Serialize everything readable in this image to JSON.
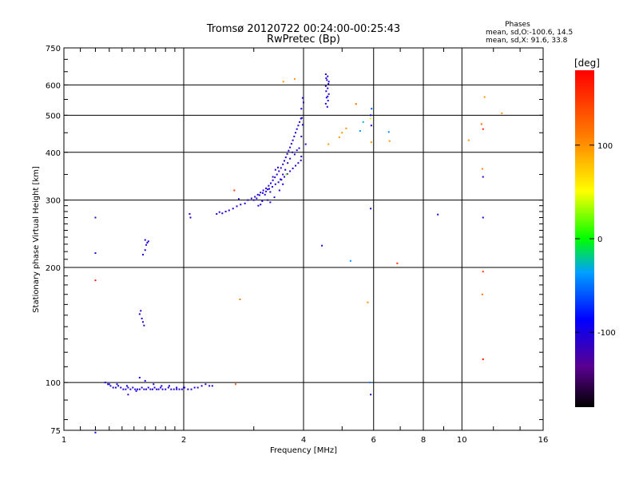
{
  "chart_data": {
    "type": "scatter",
    "title": "Tromsø 20120722 00:24:00-00:25:43",
    "subtitle": "RwPretec (Bp)",
    "stats": {
      "heading": "Phases",
      "line1": "mean, sd,O:-100.6, 14.5",
      "line2": "mean, sd,X:  91.6, 33.8"
    },
    "xlabel": "Frequency [MHz]",
    "ylabel": "Stationary phase Virtual Height [km]",
    "xscale": "log",
    "yscale": "log",
    "xlim": [
      1,
      16
    ],
    "ylim": [
      75,
      750
    ],
    "xticks": [
      1,
      2,
      4,
      6,
      8,
      10,
      16
    ],
    "yticks": [
      75,
      100,
      200,
      300,
      400,
      500,
      600,
      750
    ],
    "colorbar": {
      "label": "[deg]",
      "range": [
        -180,
        180
      ],
      "ticks": [
        -100,
        0,
        100
      ]
    },
    "grid": true,
    "points": [
      [
        1.27,
        100,
        -100
      ],
      [
        1.29,
        99,
        -105
      ],
      [
        1.31,
        98,
        -100
      ],
      [
        1.33,
        97,
        -110
      ],
      [
        1.35,
        97,
        -100
      ],
      [
        1.37,
        98,
        -105
      ],
      [
        1.39,
        97,
        -100
      ],
      [
        1.41,
        96,
        -110
      ],
      [
        1.43,
        96,
        -100
      ],
      [
        1.45,
        97,
        -105
      ],
      [
        1.47,
        96,
        -100
      ],
      [
        1.49,
        97,
        -110
      ],
      [
        1.51,
        96,
        -100
      ],
      [
        1.53,
        96,
        -105
      ],
      [
        1.55,
        96,
        -100
      ],
      [
        1.57,
        97,
        -110
      ],
      [
        1.59,
        96,
        -100
      ],
      [
        1.61,
        96,
        -105
      ],
      [
        1.63,
        97,
        -100
      ],
      [
        1.65,
        96,
        -110
      ],
      [
        1.67,
        96,
        -100
      ],
      [
        1.69,
        97,
        -105
      ],
      [
        1.71,
        96,
        -100
      ],
      [
        1.73,
        96,
        -110
      ],
      [
        1.75,
        97,
        -100
      ],
      [
        1.77,
        96,
        -105
      ],
      [
        1.8,
        96,
        -100
      ],
      [
        1.83,
        97,
        -110
      ],
      [
        1.86,
        96,
        -100
      ],
      [
        1.89,
        96,
        -105
      ],
      [
        1.92,
        97,
        -100
      ],
      [
        1.95,
        96,
        -110
      ],
      [
        1.98,
        96,
        -100
      ],
      [
        2.01,
        97,
        -105
      ],
      [
        2.05,
        96,
        -100
      ],
      [
        2.09,
        96,
        -110
      ],
      [
        2.13,
        97,
        -100
      ],
      [
        2.17,
        97,
        -105
      ],
      [
        2.22,
        98,
        -100
      ],
      [
        2.27,
        99,
        -110
      ],
      [
        2.32,
        98,
        -100
      ],
      [
        2.36,
        98,
        -105
      ],
      [
        1.3,
        99,
        -80
      ],
      [
        1.36,
        99,
        -95
      ],
      [
        1.44,
        98,
        -90
      ],
      [
        1.52,
        95,
        -100
      ],
      [
        1.6,
        101,
        -100
      ],
      [
        1.68,
        99,
        -95
      ],
      [
        1.76,
        98,
        -100
      ],
      [
        1.84,
        98,
        -95
      ],
      [
        1.92,
        96,
        -100
      ],
      [
        2.0,
        97,
        -95
      ],
      [
        1.45,
        93,
        -115
      ],
      [
        1.55,
        103,
        -100
      ],
      [
        1.55,
        151,
        -110
      ],
      [
        1.57,
        147,
        -100
      ],
      [
        1.58,
        144,
        -105
      ],
      [
        1.59,
        141,
        -110
      ],
      [
        1.56,
        154,
        -100
      ],
      [
        1.58,
        216,
        -105
      ],
      [
        1.6,
        222,
        -100
      ],
      [
        1.61,
        229,
        -110
      ],
      [
        1.62,
        232,
        -100
      ],
      [
        1.6,
        236,
        -105
      ],
      [
        1.63,
        234,
        -100
      ],
      [
        1.2,
        270,
        -110
      ],
      [
        1.2,
        218,
        -100
      ],
      [
        2.42,
        276,
        -100
      ],
      [
        2.46,
        279,
        -105
      ],
      [
        2.5,
        277,
        -100
      ],
      [
        2.55,
        280,
        -110
      ],
      [
        2.6,
        282,
        -100
      ],
      [
        2.66,
        285,
        -105
      ],
      [
        2.72,
        289,
        -100
      ],
      [
        2.78,
        292,
        -110
      ],
      [
        2.85,
        294,
        -100
      ],
      [
        2.9,
        300,
        -105
      ],
      [
        2.96,
        303,
        -100
      ],
      [
        3.02,
        306,
        -110
      ],
      [
        3.07,
        310,
        -100
      ],
      [
        3.12,
        314,
        -105
      ],
      [
        3.17,
        318,
        -100
      ],
      [
        3.22,
        322,
        -110
      ],
      [
        3.27,
        327,
        -100
      ],
      [
        3.31,
        332,
        -105
      ],
      [
        3.35,
        338,
        -100
      ],
      [
        3.39,
        344,
        -110
      ],
      [
        3.43,
        350,
        -100
      ],
      [
        3.47,
        357,
        -105
      ],
      [
        3.51,
        364,
        -100
      ],
      [
        3.55,
        372,
        -110
      ],
      [
        3.58,
        380,
        -100
      ],
      [
        3.61,
        388,
        -105
      ],
      [
        3.64,
        396,
        -100
      ],
      [
        3.67,
        404,
        -110
      ],
      [
        3.7,
        412,
        -100
      ],
      [
        3.73,
        421,
        -105
      ],
      [
        3.76,
        430,
        -100
      ],
      [
        3.79,
        440,
        -110
      ],
      [
        3.82,
        450,
        -100
      ],
      [
        3.85,
        460,
        -105
      ],
      [
        3.88,
        470,
        -100
      ],
      [
        3.91,
        480,
        -110
      ],
      [
        3.94,
        490,
        -100
      ],
      [
        3.0,
        300,
        -110
      ],
      [
        3.05,
        303,
        -100
      ],
      [
        3.1,
        309,
        -105
      ],
      [
        3.16,
        313,
        -100
      ],
      [
        3.22,
        316,
        -110
      ],
      [
        3.28,
        321,
        -100
      ],
      [
        3.34,
        325,
        -105
      ],
      [
        3.4,
        330,
        -100
      ],
      [
        3.46,
        334,
        -110
      ],
      [
        3.52,
        339,
        -100
      ],
      [
        3.58,
        345,
        -105
      ],
      [
        3.64,
        351,
        -100
      ],
      [
        3.7,
        357,
        -110
      ],
      [
        3.76,
        363,
        -100
      ],
      [
        3.82,
        369,
        -105
      ],
      [
        3.88,
        375,
        -100
      ],
      [
        3.94,
        381,
        -110
      ],
      [
        3.2,
        310,
        -100
      ],
      [
        3.25,
        320,
        -105
      ],
      [
        3.3,
        315,
        -100
      ],
      [
        3.35,
        345,
        -110
      ],
      [
        3.4,
        360,
        -100
      ],
      [
        3.45,
        365,
        -105
      ],
      [
        3.5,
        340,
        -100
      ],
      [
        3.55,
        350,
        -110
      ],
      [
        3.6,
        360,
        -100
      ],
      [
        3.65,
        375,
        -105
      ],
      [
        3.7,
        385,
        -100
      ],
      [
        3.75,
        400,
        -110
      ],
      [
        3.8,
        395,
        -100
      ],
      [
        3.85,
        405,
        -105
      ],
      [
        3.9,
        410,
        -100
      ],
      [
        3.95,
        390,
        -110
      ],
      [
        3.62,
        350,
        30
      ],
      [
        3.55,
        330,
        -95
      ],
      [
        3.48,
        318,
        -100
      ],
      [
        3.38,
        305,
        -105
      ],
      [
        3.3,
        296,
        -100
      ],
      [
        3.25,
        300,
        -110
      ],
      [
        3.15,
        298,
        -100
      ],
      [
        3.12,
        292,
        -105
      ],
      [
        3.08,
        290,
        -100
      ],
      [
        2.75,
        302,
        -110
      ],
      [
        3.96,
        492,
        -100
      ],
      [
        3.98,
        472,
        -105
      ],
      [
        3.95,
        520,
        -100
      ],
      [
        4.0,
        540,
        -110
      ],
      [
        3.98,
        555,
        -100
      ],
      [
        4.05,
        420,
        -100
      ],
      [
        3.95,
        440,
        -105
      ],
      [
        2.08,
        270,
        -110
      ],
      [
        2.07,
        276,
        -100
      ],
      [
        4.55,
        640,
        -100
      ],
      [
        4.6,
        632,
        -105
      ],
      [
        4.58,
        618,
        -100
      ],
      [
        4.62,
        604,
        -110
      ],
      [
        4.55,
        596,
        -100
      ],
      [
        4.6,
        588,
        -105
      ],
      [
        4.56,
        578,
        -100
      ],
      [
        4.63,
        568,
        -110
      ],
      [
        4.57,
        556,
        -100
      ],
      [
        4.61,
        546,
        -105
      ],
      [
        4.55,
        536,
        -100
      ],
      [
        4.59,
        526,
        -110
      ],
      [
        4.63,
        612,
        -100
      ],
      [
        4.56,
        625,
        -105
      ],
      [
        4.6,
        560,
        -100
      ],
      [
        4.45,
        228,
        -100
      ],
      [
        5.25,
        208,
        -40
      ],
      [
        5.55,
        455,
        -40
      ],
      [
        6.55,
        452,
        -40
      ],
      [
        5.0,
        450,
        100
      ],
      [
        4.92,
        438,
        100
      ],
      [
        5.12,
        462,
        100
      ],
      [
        5.65,
        480,
        -30
      ],
      [
        5.93,
        520,
        -60
      ],
      [
        5.9,
        500,
        -90
      ],
      [
        5.92,
        470,
        -100
      ],
      [
        5.9,
        285,
        -100
      ],
      [
        5.88,
        100,
        -50
      ],
      [
        5.9,
        93,
        -110
      ],
      [
        5.89,
        490,
        60
      ],
      [
        5.92,
        425,
        100
      ],
      [
        5.8,
        162,
        100
      ],
      [
        5.42,
        535,
        120
      ],
      [
        4.62,
        420,
        100
      ],
      [
        6.58,
        428,
        100
      ],
      [
        6.88,
        205,
        150
      ],
      [
        8.7,
        275,
        -110
      ],
      [
        11.3,
        270,
        -100
      ],
      [
        11.3,
        345,
        -120
      ],
      [
        11.4,
        558,
        100
      ],
      [
        11.3,
        460,
        160
      ],
      [
        11.2,
        474,
        120
      ],
      [
        11.25,
        362,
        110
      ],
      [
        11.3,
        195,
        150
      ],
      [
        11.25,
        170,
        120
      ],
      [
        11.3,
        115,
        170
      ],
      [
        12.6,
        506,
        100
      ],
      [
        10.4,
        430,
        100
      ],
      [
        2.68,
        318,
        150
      ],
      [
        2.77,
        165,
        110
      ],
      [
        2.7,
        99,
        130
      ],
      [
        3.56,
        612,
        100
      ],
      [
        3.8,
        622,
        100
      ],
      [
        1.2,
        185,
        170
      ],
      [
        1.2,
        74,
        -90
      ]
    ]
  }
}
